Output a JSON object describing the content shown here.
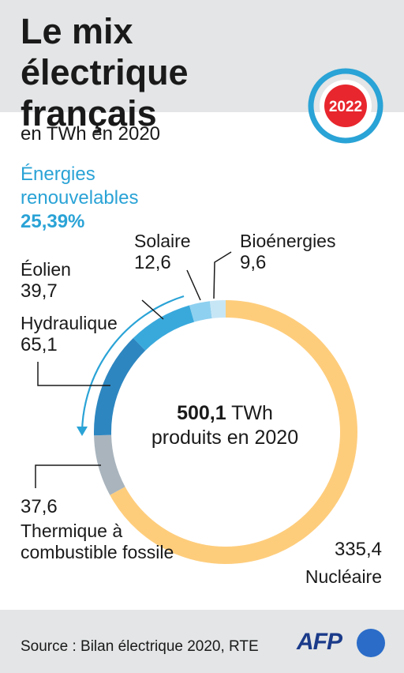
{
  "title": "Le mix électrique français",
  "badge": {
    "year": "2022"
  },
  "subtitle": "en TWh en 2020",
  "renewables": {
    "label": "Énergies renouvelables",
    "share": "25,39%"
  },
  "center": {
    "total": "500,1",
    "unit": "TWh",
    "caption": "produits en 2020"
  },
  "source": "Source : Bilan électrique 2020, RTE",
  "logo": "AFP",
  "colors": {
    "nuclear": "#fecd7c",
    "fossil": "#a9b4bd",
    "hydro": "#2d86c0",
    "wind": "#39a9dc",
    "solar": "#8ed0f0",
    "bio": "#c6e6f6",
    "accent": "#2aa3d6",
    "badge_red": "#e8262d"
  },
  "chart_data": {
    "type": "pie",
    "variant": "donut",
    "unit": "TWh",
    "total": 500.1,
    "slices": [
      {
        "label": "Nucléaire",
        "value": 335.4,
        "value_text": "335,4"
      },
      {
        "label": "Thermique à combustible fossile",
        "value": 37.6,
        "value_text": "37,6"
      },
      {
        "label": "Hydraulique",
        "value": 65.1,
        "value_text": "65,1"
      },
      {
        "label": "Éolien",
        "value": 39.7,
        "value_text": "39,7"
      },
      {
        "label": "Solaire",
        "value": 12.6,
        "value_text": "12,6"
      },
      {
        "label": "Bioénergies",
        "value": 9.6,
        "value_text": "9,6"
      }
    ]
  }
}
